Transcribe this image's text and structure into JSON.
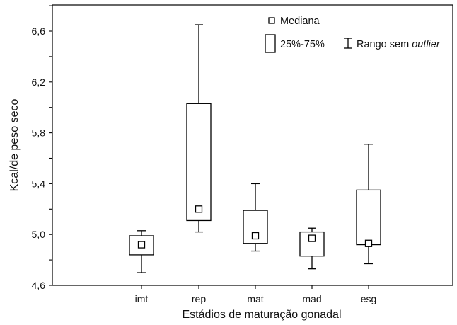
{
  "chart_data": {
    "type": "boxplot",
    "xlabel": "Estádios de maturação gonadal",
    "ylabel": "Kcal/de peso seco",
    "ylim": [
      4.6,
      6.8
    ],
    "yticks": [
      4.6,
      5.0,
      5.4,
      5.8,
      6.2,
      6.6
    ],
    "ytick_labels": [
      "4,6",
      "5,0",
      "5,4",
      "5,8",
      "6,2",
      "6,6"
    ],
    "grid": false,
    "legend": {
      "placement": "top-right",
      "median": "Mediana",
      "box": "25%-75%",
      "range_prefix": "Rango sem ",
      "range_suffix": "outlier"
    },
    "categories": [
      "imt",
      "rep",
      "mat",
      "mad",
      "esg"
    ],
    "groups": [
      {
        "name": "imt",
        "median": 4.92,
        "q1": 4.84,
        "q3": 4.99,
        "min": 4.7,
        "max": 5.03
      },
      {
        "name": "rep",
        "median": 5.2,
        "q1": 5.11,
        "q3": 6.03,
        "min": 5.02,
        "max": 6.65
      },
      {
        "name": "mat",
        "median": 4.99,
        "q1": 4.93,
        "q3": 5.19,
        "min": 4.87,
        "max": 5.4
      },
      {
        "name": "mad",
        "median": 4.97,
        "q1": 4.83,
        "q3": 5.02,
        "min": 4.73,
        "max": 5.05
      },
      {
        "name": "esg",
        "median": 4.93,
        "q1": 4.92,
        "q3": 5.35,
        "min": 4.77,
        "max": 5.71
      }
    ]
  }
}
